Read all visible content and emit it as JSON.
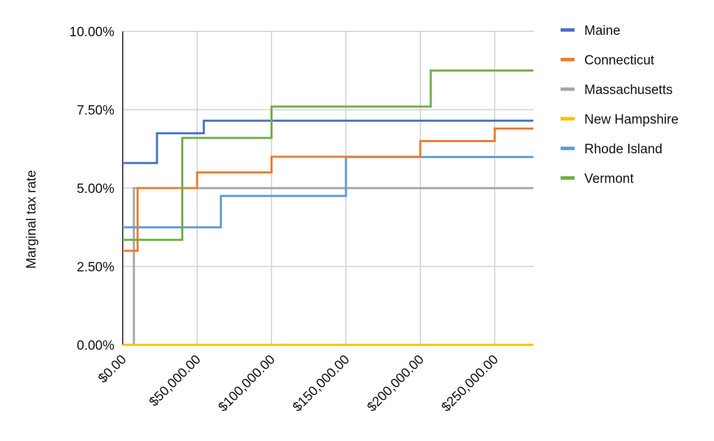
{
  "chart_data": {
    "type": "line",
    "step": true,
    "ylabel": "Marginal tax rate",
    "xlabel": "",
    "xlim": [
      0,
      276000
    ],
    "ylim": [
      0,
      10
    ],
    "x_ticks": [
      0,
      50000,
      100000,
      150000,
      200000,
      250000
    ],
    "x_tick_labels": [
      "$0.00",
      "$50,000.00",
      "$100,000.00",
      "$150,000.00",
      "$200,000.00",
      "$250,000.00"
    ],
    "y_ticks": [
      0,
      2.5,
      5,
      7.5,
      10
    ],
    "y_tick_labels": [
      "0.00%",
      "2.50%",
      "5.00%",
      "7.50%",
      "10.00%"
    ],
    "grid": true,
    "legend_position": "right",
    "series": [
      {
        "name": "Maine",
        "color": "#4472C4",
        "x": [
          0,
          23000,
          54500,
          276000
        ],
        "y": [
          5.8,
          6.75,
          7.15,
          7.15
        ]
      },
      {
        "name": "Connecticut",
        "color": "#ED7D31",
        "x": [
          0,
          10000,
          50000,
          100000,
          200000,
          250000,
          276000
        ],
        "y": [
          3.0,
          5.0,
          5.5,
          6.0,
          6.5,
          6.9,
          6.9
        ]
      },
      {
        "name": "Massachusetts",
        "color": "#A5A5A5",
        "x": [
          0,
          7500,
          276000
        ],
        "y": [
          0,
          5.0,
          5.0
        ]
      },
      {
        "name": "New Hampshire",
        "color": "#FFC000",
        "x": [
          0,
          276000
        ],
        "y": [
          0,
          0
        ]
      },
      {
        "name": "Rhode Island",
        "color": "#5B9BD5",
        "x": [
          0,
          66000,
          150000,
          276000
        ],
        "y": [
          3.75,
          4.75,
          5.99,
          5.99
        ]
      },
      {
        "name": "Vermont",
        "color": "#70AD47",
        "x": [
          0,
          40000,
          100000,
          207000,
          276000
        ],
        "y": [
          3.35,
          6.6,
          7.6,
          8.75,
          8.75
        ]
      }
    ]
  }
}
